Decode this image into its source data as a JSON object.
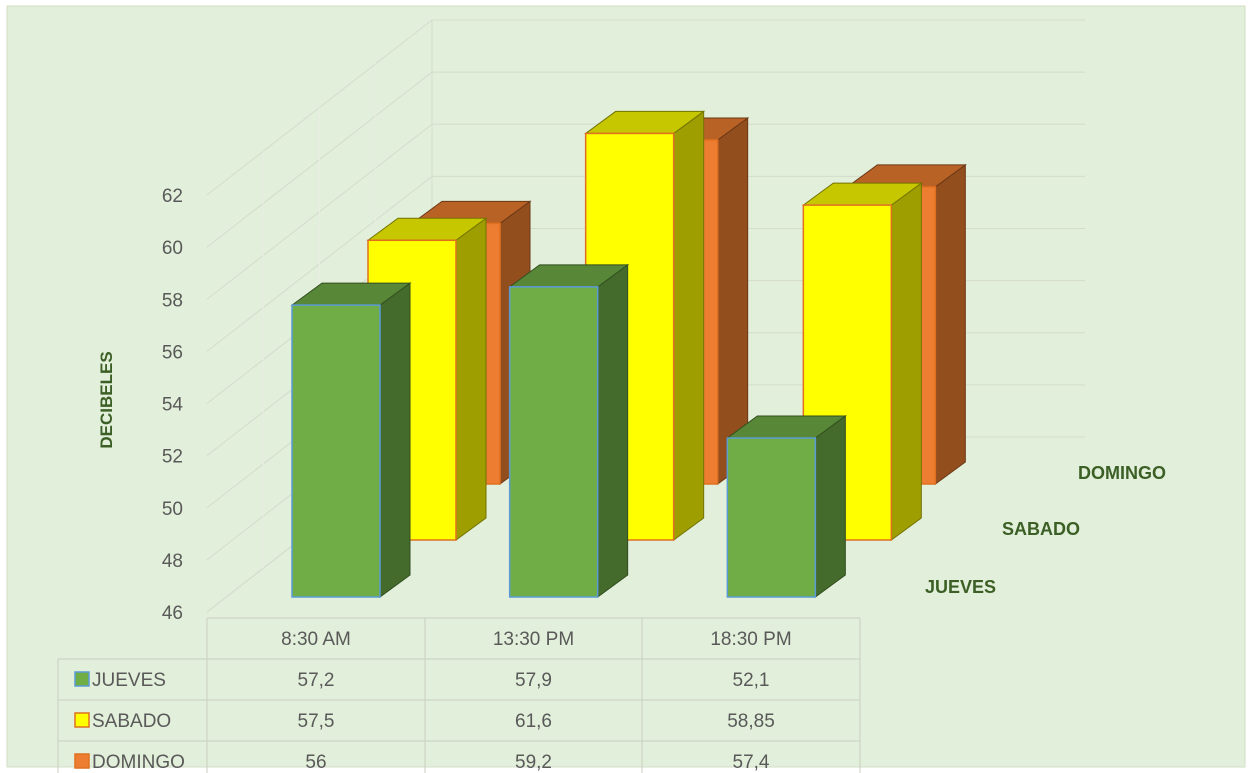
{
  "chart_data": {
    "type": "bar",
    "subtype": "3d-clustered-column-with-data-table",
    "title": "",
    "xlabel": "",
    "ylabel": "DECIBELES",
    "ylim": [
      46,
      62
    ],
    "y_ticks": [
      46,
      48,
      50,
      52,
      54,
      56,
      58,
      60,
      62
    ],
    "categories": [
      "8:30 AM",
      "13:30 PM",
      "18:30 PM"
    ],
    "series": [
      {
        "name": "JUEVES",
        "values": [
          57.2,
          57.9,
          52.1
        ],
        "labels": [
          "57,2",
          "57,9",
          "52,1"
        ],
        "color": "#70AD47"
      },
      {
        "name": "SABADO",
        "values": [
          57.5,
          61.6,
          58.85
        ],
        "labels": [
          "57,5",
          "61,6",
          "58,85"
        ],
        "color": "#FFFF00"
      },
      {
        "name": "DOMINGO",
        "values": [
          56,
          59.2,
          57.4
        ],
        "labels": [
          "56",
          "59,2",
          "57,4"
        ],
        "color": "#ED7D31"
      }
    ],
    "grid": true,
    "data_table": true,
    "background_color": "#E2EFDA"
  }
}
